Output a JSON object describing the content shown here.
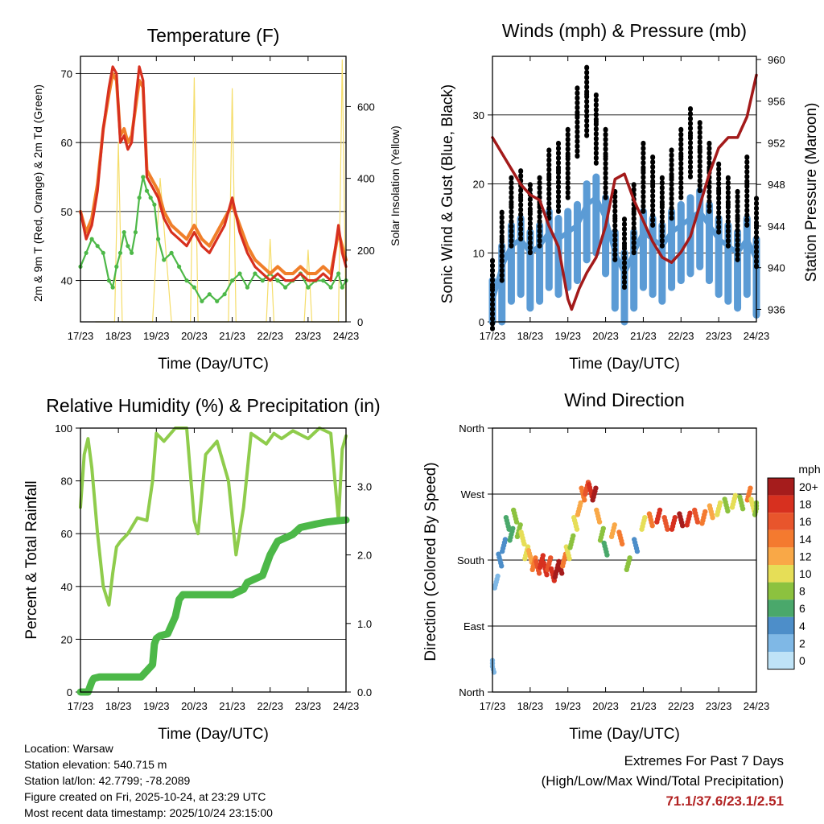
{
  "colors": {
    "temp2m": "#d7301f",
    "temp9m": "#f07f2a",
    "dewpoint": "#4db848",
    "insolation": "#f5dd6a",
    "gust": "#000000",
    "wind": "#5b9bd5",
    "pressure": "#a31a1a",
    "rh": "#8fcc4c",
    "precip": "#4cb848",
    "extremes": "#b22222"
  },
  "time_ticks": [
    "17/23",
    "18/23",
    "19/23",
    "20/23",
    "21/23",
    "22/23",
    "23/23",
    "24/23"
  ],
  "chart_data": [
    {
      "id": "temperature",
      "type": "line",
      "title": "Temperature (F)",
      "xlabel": "Time (Day/UTC)",
      "ylabel": "2m & 9m T (Red, Orange) & 2m Td (Green)",
      "y2label": "Solar Insolation (Yellow)",
      "xlim": [
        0,
        7
      ],
      "ylim": [
        34,
        72.5
      ],
      "y2lim": [
        0,
        740
      ],
      "yticks": [
        40,
        50,
        60,
        70
      ],
      "y2ticks": [
        0,
        200,
        400,
        600
      ],
      "series": [
        {
          "name": "2m T",
          "color_key": "temp2m",
          "x": [
            0,
            0.15,
            0.3,
            0.45,
            0.6,
            0.75,
            0.85,
            0.95,
            1.05,
            1.15,
            1.25,
            1.35,
            1.45,
            1.55,
            1.65,
            1.75,
            1.85,
            1.95,
            2.05,
            2.2,
            2.4,
            2.6,
            2.8,
            3.0,
            3.2,
            3.4,
            3.6,
            3.8,
            4.0,
            4.2,
            4.4,
            4.6,
            4.8,
            5.0,
            5.2,
            5.4,
            5.6,
            5.8,
            6.0,
            6.2,
            6.4,
            6.6,
            6.8,
            6.9,
            7.0
          ],
          "y": [
            50,
            46,
            48,
            53,
            62,
            68,
            71,
            70,
            60,
            61,
            59,
            60,
            66,
            71,
            69,
            55,
            54,
            53,
            52,
            49,
            47,
            46,
            45,
            47,
            45,
            44,
            46,
            48,
            52,
            47,
            44,
            42,
            41,
            40,
            41,
            40,
            40,
            41,
            40,
            40,
            41,
            40,
            48,
            44,
            42
          ]
        },
        {
          "name": "9m T",
          "color_key": "temp9m",
          "x": [
            0,
            0.15,
            0.3,
            0.45,
            0.6,
            0.75,
            0.85,
            0.95,
            1.05,
            1.15,
            1.25,
            1.35,
            1.45,
            1.55,
            1.65,
            1.75,
            1.85,
            1.95,
            2.05,
            2.2,
            2.4,
            2.6,
            2.8,
            3.0,
            3.2,
            3.4,
            3.6,
            3.8,
            4.0,
            4.2,
            4.4,
            4.6,
            4.8,
            5.0,
            5.2,
            5.4,
            5.6,
            5.8,
            6.0,
            6.2,
            6.4,
            6.6,
            6.8,
            6.9,
            7.0
          ],
          "y": [
            50,
            47,
            49,
            54,
            62,
            67,
            70,
            69,
            61,
            62,
            60,
            61,
            65,
            69,
            68,
            56,
            55,
            54,
            53,
            50,
            48,
            47,
            46,
            48,
            46,
            45,
            47,
            49,
            51,
            48,
            45,
            43,
            42,
            41,
            42,
            41,
            41,
            42,
            41,
            41,
            42,
            41,
            47,
            45,
            43
          ]
        },
        {
          "name": "2m Td",
          "color_key": "dewpoint",
          "x": [
            0,
            0.15,
            0.3,
            0.45,
            0.6,
            0.75,
            0.85,
            0.95,
            1.05,
            1.15,
            1.25,
            1.35,
            1.45,
            1.55,
            1.65,
            1.75,
            1.85,
            1.95,
            2.05,
            2.2,
            2.4,
            2.6,
            2.8,
            3.0,
            3.2,
            3.4,
            3.6,
            3.8,
            4.0,
            4.2,
            4.4,
            4.6,
            4.8,
            5.0,
            5.2,
            5.4,
            5.6,
            5.8,
            6.0,
            6.2,
            6.4,
            6.6,
            6.8,
            6.9,
            7.0
          ],
          "y": [
            42,
            44,
            46,
            45,
            44,
            40,
            39,
            42,
            44,
            47,
            45,
            44,
            47,
            52,
            55,
            53,
            52,
            51,
            46,
            43,
            44,
            42,
            40,
            39,
            37,
            38,
            37,
            38,
            40,
            41,
            39,
            41,
            40,
            41,
            40,
            39,
            40,
            41,
            39,
            40,
            40,
            39,
            41,
            39,
            40
          ]
        },
        {
          "name": "Solar Insolation",
          "color_key": "insolation",
          "axis": "y2",
          "x": [
            0.4,
            0.9,
            1.0,
            1.1,
            1.4,
            1.9,
            2.1,
            2.4,
            2.5,
            2.9,
            3.0,
            3.1,
            3.5,
            3.9,
            4.0,
            4.1,
            4.4,
            4.9,
            5.0,
            5.1,
            5.4,
            5.9,
            6.0,
            6.1,
            6.4,
            6.8,
            6.9,
            7.0
          ],
          "y": [
            0,
            0,
            500,
            0,
            0,
            0,
            400,
            0,
            0,
            0,
            680,
            0,
            0,
            0,
            650,
            0,
            0,
            0,
            230,
            0,
            0,
            0,
            200,
            0,
            0,
            0,
            730,
            0
          ]
        }
      ]
    },
    {
      "id": "winds",
      "type": "scatter",
      "title": "Winds (mph) & Pressure (mb)",
      "xlabel": "Time (Day/UTC)",
      "ylabel": "Sonic Wind & Gust (Blue, Black)",
      "y2label": "Station Pressure (Maroon)",
      "xlim": [
        0,
        7
      ],
      "ylim": [
        0,
        38.5
      ],
      "y2lim": [
        934.8,
        960.3
      ],
      "yticks": [
        0,
        10,
        20,
        30
      ],
      "y2ticks": [
        936,
        940,
        944,
        948,
        952,
        956,
        960
      ],
      "series": [
        {
          "name": "Sonic Wind",
          "color_key": "wind",
          "x": [
            0,
            0.25,
            0.5,
            0.75,
            1.0,
            1.25,
            1.5,
            1.75,
            2.0,
            2.25,
            2.5,
            2.75,
            3.0,
            3.25,
            3.5,
            3.75,
            4.0,
            4.25,
            4.5,
            4.75,
            5.0,
            5.25,
            5.5,
            5.75,
            6.0,
            6.25,
            6.5,
            6.75,
            7.0
          ],
          "y": [
            3,
            8,
            11,
            12,
            10,
            11,
            13,
            12,
            13,
            14,
            17,
            18,
            15,
            10,
            7,
            10,
            13,
            12,
            11,
            13,
            14,
            15,
            16,
            14,
            12,
            11,
            10,
            12,
            9
          ]
        },
        {
          "name": "Gust",
          "color_key": "gust",
          "x": [
            0,
            0.25,
            0.5,
            0.75,
            1.0,
            1.25,
            1.5,
            1.75,
            2.0,
            2.25,
            2.5,
            2.75,
            3.0,
            3.25,
            3.5,
            3.75,
            4.0,
            4.25,
            4.5,
            4.75,
            5.0,
            5.25,
            5.5,
            5.75,
            6.0,
            6.25,
            6.5,
            6.75,
            7.0
          ],
          "y": [
            5,
            12,
            17,
            18,
            16,
            17,
            21,
            22,
            24,
            30,
            33,
            29,
            24,
            15,
            11,
            16,
            22,
            20,
            17,
            21,
            24,
            27,
            25,
            22,
            19,
            17,
            15,
            20,
            14
          ]
        },
        {
          "name": "Station Pressure",
          "color_key": "pressure",
          "axis": "y2",
          "x": [
            0,
            0.25,
            0.5,
            0.75,
            1.0,
            1.25,
            1.5,
            1.75,
            2.0,
            2.1,
            2.3,
            2.5,
            2.75,
            3.0,
            3.25,
            3.5,
            3.75,
            4.0,
            4.25,
            4.5,
            4.75,
            5.0,
            5.25,
            5.5,
            5.75,
            6.0,
            6.25,
            6.5,
            6.75,
            7.0
          ],
          "y": [
            952.5,
            951,
            949.5,
            948,
            947,
            946.5,
            944,
            942,
            937,
            936,
            938,
            939.5,
            941,
            944,
            948.5,
            949,
            946.5,
            944.5,
            942.5,
            941,
            940.5,
            941.5,
            943,
            946,
            949,
            951.5,
            952.5,
            952.5,
            954.5,
            958.5
          ]
        }
      ]
    },
    {
      "id": "humidity",
      "type": "line",
      "title": "Relative Humidity (%) & Precipitation (in)",
      "xlabel": "Time (Day/UTC)",
      "ylabel": "Percent & Total Rainfall",
      "xlim": [
        0,
        7
      ],
      "ylim": [
        0,
        100
      ],
      "y2lim": [
        0,
        3.85
      ],
      "yticks": [
        0,
        20,
        40,
        60,
        80,
        100
      ],
      "y2ticks": [
        "0.0",
        "1.0",
        "2.0",
        "3.0"
      ],
      "y2tick_values": [
        0,
        1,
        2,
        3
      ],
      "series": [
        {
          "name": "Relative Humidity",
          "color_key": "rh",
          "x": [
            0,
            0.1,
            0.2,
            0.3,
            0.45,
            0.6,
            0.75,
            0.85,
            0.95,
            1.05,
            1.25,
            1.5,
            1.75,
            1.9,
            2.0,
            2.2,
            2.5,
            2.8,
            3.0,
            3.1,
            3.3,
            3.6,
            3.9,
            4.1,
            4.3,
            4.5,
            4.7,
            4.9,
            5.1,
            5.3,
            5.6,
            6.0,
            6.3,
            6.6,
            6.8,
            6.9,
            7.0
          ],
          "y": [
            70,
            90,
            96,
            85,
            60,
            40,
            33,
            45,
            55,
            57,
            60,
            66,
            65,
            80,
            98,
            95,
            100,
            100,
            65,
            60,
            90,
            95,
            80,
            52,
            70,
            98,
            96,
            94,
            98,
            96,
            99,
            96,
            100,
            98,
            65,
            92,
            97
          ]
        },
        {
          "name": "Total Precipitation",
          "color_key": "precip",
          "axis": "y2",
          "x": [
            0,
            0.2,
            0.3,
            0.35,
            0.5,
            1.0,
            1.6,
            1.9,
            1.95,
            2.0,
            2.05,
            2.1,
            2.3,
            2.5,
            2.6,
            2.7,
            3.0,
            3.5,
            4.0,
            4.3,
            4.4,
            4.6,
            4.8,
            5.0,
            5.2,
            5.6,
            5.8,
            6.2,
            6.5,
            6.8,
            7.0
          ],
          "y": [
            0,
            0,
            0.15,
            0.2,
            0.22,
            0.22,
            0.22,
            0.4,
            0.7,
            0.78,
            0.8,
            0.82,
            0.85,
            1.1,
            1.35,
            1.42,
            1.42,
            1.42,
            1.42,
            1.5,
            1.6,
            1.65,
            1.7,
            2.0,
            2.2,
            2.3,
            2.4,
            2.45,
            2.48,
            2.5,
            2.51
          ]
        }
      ]
    },
    {
      "id": "direction",
      "type": "scatter",
      "title": "Wind Direction",
      "xlabel": "Time (Day/UTC)",
      "ylabel": "Direction (Colored By Speed)",
      "xlim": [
        0,
        7
      ],
      "ylim": [
        0,
        360
      ],
      "ytick_labels": [
        "North",
        "East",
        "South",
        "West",
        "North"
      ],
      "ytick_values": [
        0,
        90,
        180,
        270,
        360
      ],
      "series": [
        {
          "name": "Direction",
          "x": [
            0,
            0.1,
            0.2,
            0.3,
            0.4,
            0.5,
            0.6,
            0.7,
            0.8,
            0.9,
            1.0,
            1.1,
            1.2,
            1.3,
            1.4,
            1.5,
            1.6,
            1.7,
            1.8,
            1.9,
            2.0,
            2.1,
            2.2,
            2.3,
            2.4,
            2.5,
            2.6,
            2.7,
            2.8,
            2.9,
            3.0,
            3.2,
            3.4,
            3.6,
            3.8,
            4.0,
            4.2,
            4.4,
            4.6,
            4.8,
            5.0,
            5.2,
            5.4,
            5.6,
            5.8,
            6.0,
            6.2,
            6.4,
            6.6,
            6.8,
            6.9,
            7.0
          ],
          "y": [
            35,
            150,
            180,
            200,
            230,
            215,
            240,
            220,
            210,
            190,
            185,
            175,
            170,
            178,
            168,
            175,
            160,
            165,
            170,
            180,
            190,
            205,
            230,
            250,
            270,
            278,
            275,
            270,
            240,
            215,
            195,
            220,
            210,
            175,
            200,
            230,
            235,
            240,
            230,
            230,
            235,
            236,
            240,
            238,
            246,
            250,
            255,
            260,
            258,
            270,
            255,
            250
          ],
          "speed": [
            3,
            3,
            4,
            5,
            6,
            7,
            8,
            9,
            10,
            11,
            12,
            14,
            16,
            18,
            18,
            16,
            18,
            20,
            20,
            14,
            10,
            8,
            10,
            12,
            14,
            16,
            18,
            20,
            12,
            8,
            6,
            12,
            14,
            8,
            4,
            10,
            14,
            18,
            16,
            18,
            20,
            18,
            16,
            14,
            12,
            10,
            9,
            10,
            9,
            14,
            11,
            9
          ]
        }
      ],
      "colorbar": {
        "title": "mph",
        "labels": [
          "20+",
          "18",
          "16",
          "14",
          "12",
          "10",
          "8",
          "6",
          "4",
          "2",
          "0"
        ],
        "colors": [
          "#a51c1c",
          "#d7301f",
          "#e8552c",
          "#f47a2f",
          "#f9a847",
          "#e6de57",
          "#8cc23f",
          "#4aa86b",
          "#4d8ec9",
          "#7fb8e6",
          "#bfe3f7"
        ]
      }
    }
  ],
  "footer": {
    "location": "Location: Warsaw",
    "elevation": "Station elevation: 540.715 m",
    "latlon": "Station lat/lon: 42.7799; -78.2089",
    "created": "Figure created on Fri, 2025-10-24, at 23:29 UTC",
    "recent": "Most recent data timestamp: 2025/10/24 23:15:00"
  },
  "extremes": {
    "title": "Extremes For Past 7 Days",
    "subtitle": "(High/Low/Max Wind/Total Precipitation)",
    "value": "71.1/37.6/23.1/2.51"
  }
}
